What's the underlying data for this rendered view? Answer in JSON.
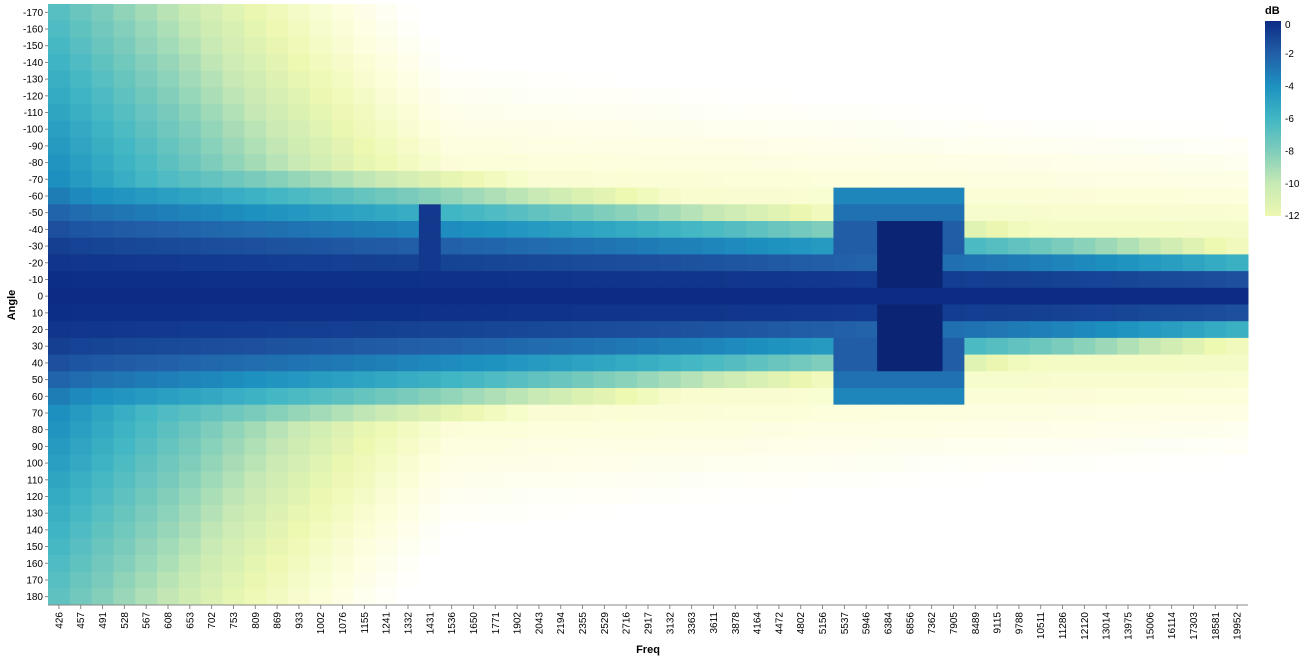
{
  "chart_data": {
    "type": "heatmap",
    "xlabel": "Freq",
    "ylabel": "Angle",
    "x_categories": [
      "426",
      "457",
      "491",
      "528",
      "567",
      "608",
      "653",
      "702",
      "753",
      "809",
      "869",
      "933",
      "1002",
      "1076",
      "1155",
      "1241",
      "1332",
      "1431",
      "1536",
      "1650",
      "1771",
      "1902",
      "2043",
      "2194",
      "2355",
      "2529",
      "2716",
      "2917",
      "3132",
      "3363",
      "3611",
      "3878",
      "4164",
      "4472",
      "4802",
      "5156",
      "5537",
      "5946",
      "6384",
      "6856",
      "7362",
      "7905",
      "8489",
      "9115",
      "9788",
      "10511",
      "11286",
      "12120",
      "13014",
      "13975",
      "15006",
      "16114",
      "17303",
      "18581",
      "19952"
    ],
    "y_categories": [
      "-170",
      "-160",
      "-150",
      "-140",
      "-130",
      "-120",
      "-110",
      "-100",
      "-90",
      "-80",
      "-70",
      "-60",
      "-50",
      "-40",
      "-30",
      "-20",
      "-10",
      "0",
      "10",
      "20",
      "30",
      "40",
      "50",
      "60",
      "70",
      "80",
      "90",
      "100",
      "110",
      "120",
      "130",
      "140",
      "150",
      "160",
      "170",
      "180"
    ],
    "legend": {
      "title": "dB",
      "ticks": [
        "0",
        "-2",
        "-4",
        "-6",
        "-8",
        "-10",
        "-12"
      ],
      "domain": [
        -12,
        0
      ],
      "colors": [
        "#edf8b1",
        "#c7e9b4",
        "#7fcdbb",
        "#41b6c4",
        "#1d91c0",
        "#225ea8",
        "#0c2c84"
      ]
    },
    "value_clamp_note": "",
    "z_scale_min": -16,
    "z_scale_max": 1
  }
}
